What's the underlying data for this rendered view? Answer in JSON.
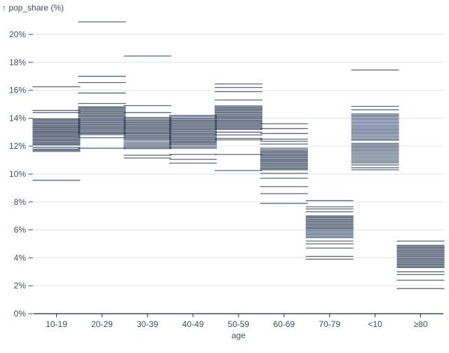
{
  "title": "↑ pop_share (%)",
  "chart_data": {
    "type": "tick",
    "title": "pop_share (%)",
    "xlabel": "age",
    "ylabel": "pop_share (%)",
    "ylim": [
      0,
      21.5
    ],
    "grid": true,
    "legend": "none",
    "y_ticks": [
      0,
      2,
      4,
      6,
      8,
      10,
      12,
      14,
      16,
      18,
      20
    ],
    "y_tick_labels": [
      "0%",
      "2%",
      "4%",
      "6%",
      "8%",
      "10%",
      "12%",
      "14%",
      "16%",
      "18%",
      "20%"
    ],
    "categories": [
      "10-19",
      "20-29",
      "30-39",
      "40-49",
      "50-59",
      "60-69",
      "70-79",
      "<10",
      "≥80"
    ],
    "series": [
      {
        "name": "10-19",
        "values": [
          9.55,
          11.62,
          11.7,
          11.78,
          11.9,
          12.08,
          12.15,
          12.22,
          12.3,
          12.38,
          12.45,
          12.52,
          12.6,
          12.68,
          12.75,
          12.82,
          12.9,
          12.98,
          13.05,
          13.12,
          13.2,
          13.28,
          13.35,
          13.42,
          13.5,
          13.58,
          13.65,
          13.72,
          13.8,
          13.88,
          13.95,
          14.4,
          14.55,
          16.25
        ]
      },
      {
        "name": "20-29",
        "values": [
          11.85,
          12.6,
          12.82,
          12.9,
          12.98,
          13.06,
          13.14,
          13.22,
          13.3,
          13.38,
          13.46,
          13.54,
          13.62,
          13.7,
          13.78,
          13.86,
          13.94,
          14.02,
          14.1,
          14.18,
          14.26,
          14.34,
          14.42,
          14.5,
          14.58,
          14.66,
          14.74,
          14.82,
          15.05,
          15.8,
          16.55,
          17.0,
          20.9
        ]
      },
      {
        "name": "30-39",
        "values": [
          11.15,
          11.35,
          11.82,
          11.9,
          12.0,
          12.1,
          12.2,
          12.3,
          12.42,
          12.5,
          12.58,
          12.66,
          12.74,
          12.82,
          12.9,
          12.98,
          13.06,
          13.14,
          13.22,
          13.3,
          13.38,
          13.46,
          13.54,
          13.62,
          13.7,
          13.78,
          13.86,
          13.95,
          14.05,
          14.4,
          14.9,
          18.45
        ]
      },
      {
        "name": "40-49",
        "values": [
          10.78,
          11.05,
          11.4,
          11.85,
          11.95,
          12.08,
          12.16,
          12.24,
          12.32,
          12.4,
          12.48,
          12.56,
          12.64,
          12.72,
          12.8,
          12.88,
          12.96,
          13.04,
          13.12,
          13.2,
          13.28,
          13.36,
          13.44,
          13.52,
          13.6,
          13.68,
          13.76,
          13.84,
          13.92,
          14.0,
          14.1,
          14.2
        ]
      },
      {
        "name": "50-59",
        "values": [
          10.25,
          11.4,
          12.45,
          12.55,
          12.8,
          13.0,
          13.2,
          13.28,
          13.36,
          13.44,
          13.52,
          13.6,
          13.68,
          13.76,
          13.84,
          13.92,
          14.0,
          14.08,
          14.16,
          14.24,
          14.32,
          14.4,
          14.48,
          14.56,
          14.64,
          14.72,
          14.8,
          14.88,
          15.3,
          15.9,
          16.2,
          16.45
        ]
      },
      {
        "name": "60-69",
        "values": [
          7.9,
          8.6,
          9.1,
          9.7,
          10.05,
          10.3,
          10.38,
          10.46,
          10.54,
          10.62,
          10.7,
          10.78,
          10.86,
          10.94,
          11.02,
          11.1,
          11.18,
          11.26,
          11.34,
          11.42,
          11.5,
          11.58,
          11.66,
          11.74,
          11.85,
          12.15,
          12.35,
          12.5,
          12.9,
          13.25,
          13.6
        ]
      },
      {
        "name": "70-79",
        "values": [
          3.9,
          4.1,
          4.7,
          5.0,
          5.2,
          5.45,
          5.55,
          5.65,
          5.75,
          5.85,
          5.95,
          6.05,
          6.12,
          6.2,
          6.28,
          6.36,
          6.44,
          6.52,
          6.6,
          6.68,
          6.76,
          6.84,
          6.92,
          7.0,
          7.3,
          7.5,
          7.65,
          8.1
        ]
      },
      {
        "name": "<10",
        "values": [
          10.3,
          10.45,
          10.65,
          10.8,
          10.9,
          11.0,
          11.1,
          11.2,
          11.3,
          11.4,
          11.5,
          11.6,
          11.7,
          11.8,
          11.9,
          12.0,
          12.1,
          12.2,
          12.42,
          12.5,
          12.6,
          12.7,
          12.8,
          12.9,
          13.0,
          13.1,
          13.2,
          13.3,
          13.4,
          13.5,
          13.6,
          13.7,
          13.8,
          13.9,
          14.0,
          14.1,
          14.2,
          14.3,
          14.6,
          14.85,
          17.45
        ]
      },
      {
        "name": "≥80",
        "values": [
          1.8,
          2.4,
          2.8,
          3.0,
          3.3,
          3.38,
          3.46,
          3.54,
          3.62,
          3.7,
          3.78,
          3.86,
          3.94,
          4.02,
          4.1,
          4.18,
          4.26,
          4.34,
          4.42,
          4.5,
          4.58,
          4.66,
          4.74,
          4.82,
          4.9,
          5.2
        ]
      }
    ]
  },
  "colors": {
    "tick_stroke": "#1c2e4a",
    "grid": "#e4e7eb",
    "axis": "#1e2c40",
    "label": "#3d4e64"
  }
}
